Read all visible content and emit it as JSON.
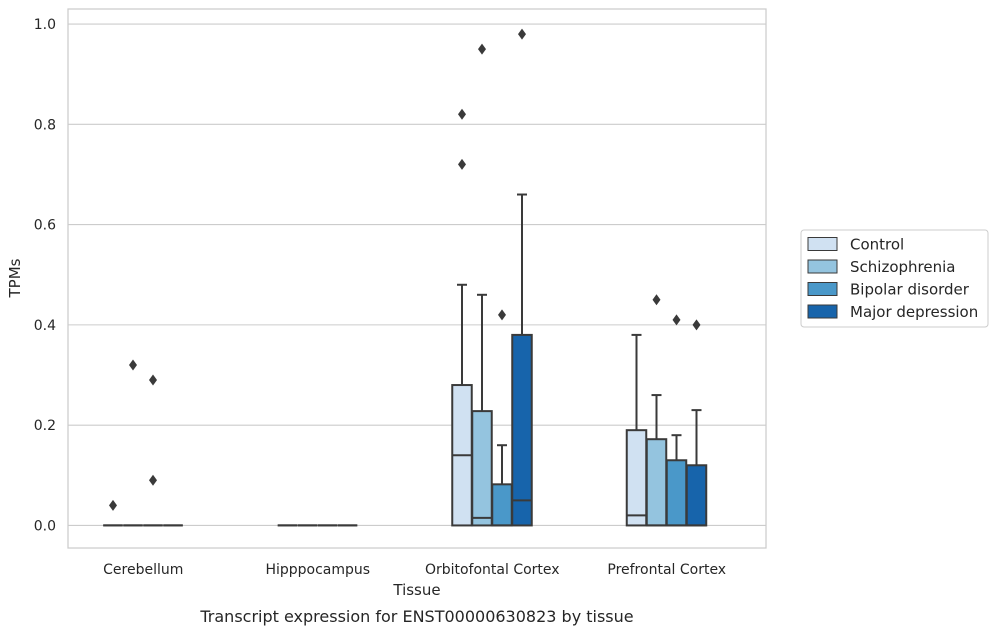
{
  "chart_data": {
    "type": "box",
    "xlabel": "Tissue",
    "ylabel": "TPMs",
    "caption": "Transcript expression for ENST00000630823 by tissue",
    "ylim": [
      -0.045,
      1.03
    ],
    "yticks": [
      0.0,
      0.2,
      0.4,
      0.6,
      0.8,
      1.0
    ],
    "ytick_labels": [
      "0.0",
      "0.2",
      "0.4",
      "0.6",
      "0.8",
      "1.0"
    ],
    "grid": true,
    "legend_position": "right",
    "categories": [
      "Cerebellum",
      "Hipppocampus",
      "Orbitofontal Cortex",
      "Prefrontal Cortex"
    ],
    "series": [
      {
        "name": "Control",
        "color": "#d0e1f2",
        "boxes": [
          {
            "q1": 0,
            "median": 0,
            "q3": 0,
            "whisker_low": 0,
            "whisker_high": 0,
            "outliers": [
              0.04
            ]
          },
          {
            "q1": 0,
            "median": 0,
            "q3": 0,
            "whisker_low": 0,
            "whisker_high": 0,
            "outliers": []
          },
          {
            "q1": 0,
            "median": 0.14,
            "q3": 0.28,
            "whisker_low": 0,
            "whisker_high": 0.48,
            "outliers": [
              0.72,
              0.82
            ]
          },
          {
            "q1": 0,
            "median": 0.02,
            "q3": 0.19,
            "whisker_low": 0,
            "whisker_high": 0.38,
            "outliers": []
          }
        ]
      },
      {
        "name": "Schizophrenia",
        "color": "#94c4df",
        "boxes": [
          {
            "q1": 0,
            "median": 0,
            "q3": 0,
            "whisker_low": 0,
            "whisker_high": 0,
            "outliers": [
              0.32
            ]
          },
          {
            "q1": 0,
            "median": 0,
            "q3": 0,
            "whisker_low": 0,
            "whisker_high": 0,
            "outliers": []
          },
          {
            "q1": 0,
            "median": 0.015,
            "q3": 0.228,
            "whisker_low": 0,
            "whisker_high": 0.46,
            "outliers": [
              0.95
            ]
          },
          {
            "q1": 0,
            "median": 0,
            "q3": 0.172,
            "whisker_low": 0,
            "whisker_high": 0.26,
            "outliers": [
              0.45
            ]
          }
        ]
      },
      {
        "name": "Bipolar disorder",
        "color": "#4a98c9",
        "boxes": [
          {
            "q1": 0,
            "median": 0,
            "q3": 0,
            "whisker_low": 0,
            "whisker_high": 0,
            "outliers": [
              0.09,
              0.29
            ]
          },
          {
            "q1": 0,
            "median": 0,
            "q3": 0,
            "whisker_low": 0,
            "whisker_high": 0,
            "outliers": []
          },
          {
            "q1": 0,
            "median": 0,
            "q3": 0.082,
            "whisker_low": 0,
            "whisker_high": 0.16,
            "outliers": [
              0.42
            ]
          },
          {
            "q1": 0,
            "median": 0,
            "q3": 0.13,
            "whisker_low": 0,
            "whisker_high": 0.18,
            "outliers": [
              0.41
            ]
          }
        ]
      },
      {
        "name": "Major depression",
        "color": "#1764ab",
        "boxes": [
          {
            "q1": 0,
            "median": 0,
            "q3": 0,
            "whisker_low": 0,
            "whisker_high": 0,
            "outliers": []
          },
          {
            "q1": 0,
            "median": 0,
            "q3": 0,
            "whisker_low": 0,
            "whisker_high": 0,
            "outliers": []
          },
          {
            "q1": 0,
            "median": 0.05,
            "q3": 0.38,
            "whisker_low": 0,
            "whisker_high": 0.66,
            "outliers": [
              0.98
            ]
          },
          {
            "q1": 0,
            "median": 0,
            "q3": 0.12,
            "whisker_low": 0,
            "whisker_high": 0.23,
            "outliers": [
              0.4
            ]
          }
        ]
      }
    ]
  }
}
